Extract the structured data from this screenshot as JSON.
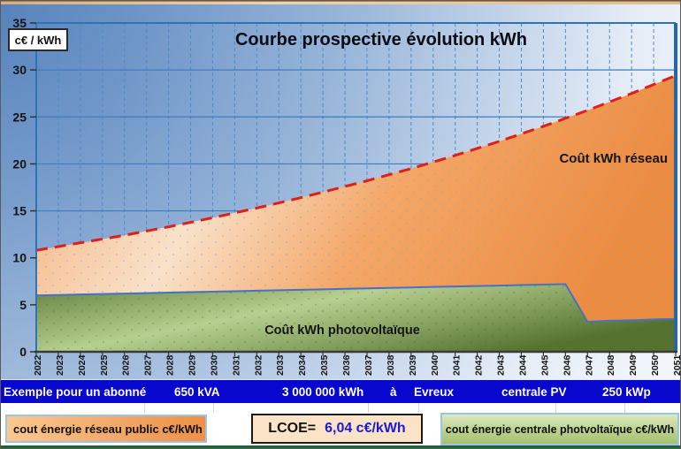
{
  "header": {
    "unit_label": "c€ / kWh",
    "title": "Courbe prospective évolution kWh"
  },
  "chart_data": {
    "type": "area",
    "title": "Courbe prospective évolution kWh",
    "ylabel": "c€ / kWh",
    "ylim": [
      0,
      35
    ],
    "yticks": [
      0,
      5,
      10,
      15,
      20,
      25,
      30,
      35
    ],
    "grid": true,
    "x": [
      2022,
      2023,
      2024,
      2025,
      2026,
      2027,
      2028,
      2029,
      2030,
      2031,
      2032,
      2033,
      2034,
      2035,
      2036,
      2037,
      2038,
      2039,
      2040,
      2041,
      2042,
      2043,
      2044,
      2045,
      2046,
      2047,
      2048,
      2049,
      2050,
      2051
    ],
    "series": [
      {
        "name": "Coût kWh réseau",
        "values": [
          10.8,
          11.2,
          11.6,
          12.0,
          12.4,
          12.85,
          13.3,
          13.78,
          14.27,
          14.78,
          15.3,
          15.85,
          16.4,
          17.0,
          17.6,
          18.2,
          18.85,
          19.5,
          20.2,
          20.9,
          21.65,
          22.4,
          23.2,
          24.0,
          24.85,
          25.7,
          26.6,
          27.5,
          28.45,
          29.4
        ]
      },
      {
        "name": "Coût kWh photovoltaïque",
        "values": [
          6.0,
          6.05,
          6.1,
          6.15,
          6.2,
          6.25,
          6.3,
          6.35,
          6.4,
          6.45,
          6.5,
          6.55,
          6.6,
          6.65,
          6.7,
          6.75,
          6.8,
          6.85,
          6.9,
          6.95,
          7.0,
          7.05,
          7.1,
          7.15,
          7.2,
          3.2,
          3.3,
          3.35,
          3.45,
          3.5
        ]
      }
    ],
    "legend_position": "bottom"
  },
  "annotations": {
    "reseau_label": "Coût kWh réseau",
    "pv_label": "Coût kWh photovoltaïque"
  },
  "banner": {
    "items": [
      "Exemple pour un abonné",
      "650 kVA",
      "3 000 000 kWh",
      "à",
      "Evreux",
      "centrale PV",
      "250 kWp"
    ]
  },
  "legend": {
    "reseau": "cout énergie réseau public c€/kWh",
    "lcoe_label": "LCOE=",
    "lcoe_value": "6,04 c€/kWh",
    "pv": "cout énergie centrale photvoltaïque c€/kWh"
  },
  "colors": {
    "banner_blue": "#0707ce",
    "lcoe_value_blue": "#1b1bd4",
    "red_dash_line": "#df1f1a",
    "pv_stroke_blue": "#4472c4",
    "orange_fill_light": "#fbe2c9",
    "orange_fill_deep": "#ec8c41",
    "green_fill_light": "#b7cf90",
    "green_fill_dark": "#55722f",
    "gridline_blue": "#3d7cc2",
    "bottom_divider_green": "#1e6337"
  }
}
